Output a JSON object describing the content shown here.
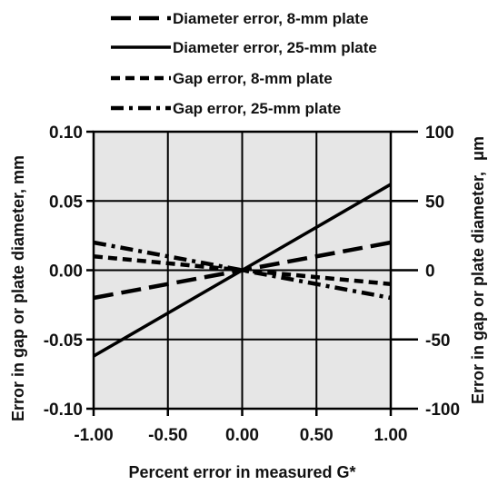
{
  "chart_data": {
    "type": "line",
    "xlabel": "Percent error in measured G*",
    "ylabel_left": "Error in gap or plate diameter, mm",
    "ylabel_right": "Error in gap or plate diameter,",
    "ylabel_right_unit": "μm",
    "xlim": [
      -1.0,
      1.0
    ],
    "ylim_left": [
      -0.1,
      0.1
    ],
    "ylim_right": [
      -100,
      100
    ],
    "x_ticks": [
      -1.0,
      -0.5,
      0.0,
      0.5,
      1.0
    ],
    "x_tick_labels": [
      "-1.00",
      "-0.50",
      "0.00",
      "0.50",
      "1.00"
    ],
    "y_left_ticks": [
      -0.1,
      -0.05,
      0.0,
      0.05,
      0.1
    ],
    "y_left_tick_labels": [
      "-0.10",
      "-0.05",
      "0.00",
      "0.05",
      "0.10"
    ],
    "y_right_ticks": [
      -100,
      -50,
      0,
      50,
      100
    ],
    "y_right_tick_labels": [
      "-100",
      "-50",
      "0",
      "50",
      "100"
    ],
    "grid": true,
    "plot_background": "#e6e6e6",
    "legend_position": "top",
    "series": [
      {
        "name": "Diameter error, 8-mm plate",
        "style": "long-dash",
        "x": [
          -1.0,
          1.0
        ],
        "y": [
          -0.02,
          0.02
        ]
      },
      {
        "name": "Diameter error, 25-mm plate",
        "style": "solid",
        "x": [
          -1.0,
          1.0
        ],
        "y": [
          -0.062,
          0.062
        ]
      },
      {
        "name": "Gap error, 8-mm plate",
        "style": "short-dash",
        "x": [
          -1.0,
          0.0,
          1.0
        ],
        "y": [
          0.01,
          0.0,
          -0.01
        ]
      },
      {
        "name": "Gap error, 25-mm plate",
        "style": "dash-dot",
        "x": [
          -1.0,
          0.0,
          1.0
        ],
        "y": [
          0.02,
          0.0,
          -0.02
        ]
      }
    ]
  }
}
